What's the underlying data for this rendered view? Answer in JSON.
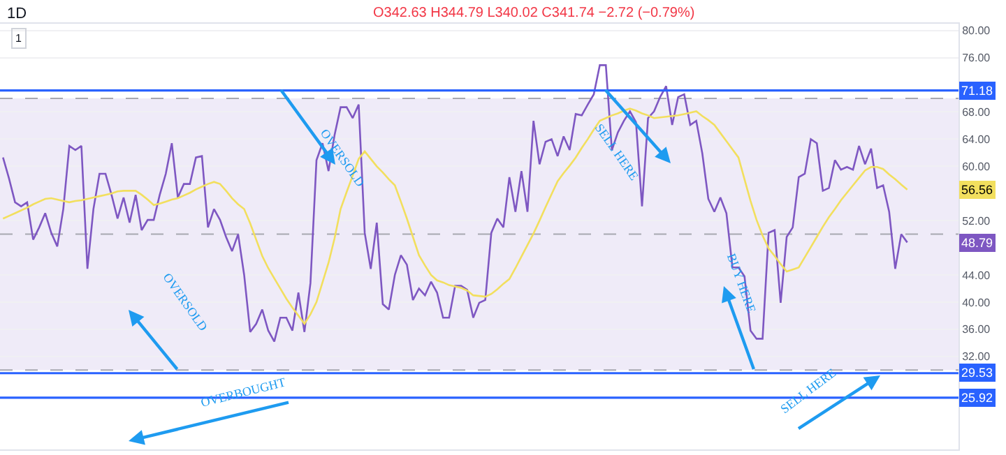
{
  "chart_data": {
    "type": "line",
    "title": "1D",
    "subtitle": "O342.63 H344.79 L340.02 C341.74 −2.72 (−0.79%)",
    "categories": [
      null,
      null,
      null,
      null,
      null,
      null,
      null,
      null,
      null,
      null,
      null,
      null,
      null,
      null,
      null,
      null,
      null,
      null,
      null,
      null,
      null,
      null,
      null,
      null,
      null,
      null,
      null,
      null,
      null,
      null,
      null,
      null,
      null,
      null,
      null,
      null,
      null,
      null,
      null,
      null,
      null,
      null,
      null,
      null,
      null,
      null,
      null,
      null,
      null,
      null,
      null,
      null,
      null,
      null,
      null,
      null,
      null,
      null,
      null,
      null,
      null,
      null,
      null,
      null,
      null,
      null,
      null,
      null,
      null,
      null,
      null,
      null,
      null,
      null,
      null,
      null,
      null,
      null,
      null,
      null,
      null,
      null,
      null,
      null,
      null,
      null,
      null,
      null,
      null,
      null,
      null,
      null,
      null,
      null,
      null,
      null,
      null,
      null,
      null,
      null,
      null,
      null,
      null,
      null,
      null,
      null,
      null,
      null,
      null,
      null,
      null,
      null,
      null,
      null,
      null,
      null,
      null,
      null,
      null,
      null,
      null,
      null,
      null,
      null,
      null,
      null,
      null,
      null,
      null,
      null,
      null,
      null,
      null,
      null,
      null,
      null,
      null,
      null,
      null,
      null,
      null,
      null,
      null,
      null,
      null,
      null,
      null,
      null,
      null,
      null,
      null,
      null,
      null,
      null,
      null,
      null,
      null,
      null,
      null
    ],
    "series": [
      {
        "color": "#7e57c2",
        "values": [
          61.3,
          58.2,
          54.7,
          54.1,
          54.7,
          49.2,
          51.0,
          53.1,
          50.2,
          48.2,
          53.7,
          63.0,
          62.4,
          63.0,
          44.9,
          53.7,
          58.9,
          58.9,
          55.8,
          52.3,
          55.4,
          51.7,
          55.8,
          50.6,
          52.1,
          52.1,
          55.8,
          58.9,
          63.4,
          55.4,
          57.4,
          57.4,
          61.3,
          61.5,
          51.0,
          53.7,
          52.1,
          49.6,
          47.5,
          50.0,
          44.0,
          35.6,
          36.8,
          38.9,
          35.8,
          34.2,
          37.7,
          37.7,
          35.8,
          41.4,
          35.6,
          42.8,
          60.9,
          63.4,
          59.3,
          64.6,
          68.7,
          68.7,
          67.1,
          69.1,
          50.2,
          44.9,
          51.7,
          39.7,
          38.9,
          44.0,
          46.9,
          45.5,
          40.3,
          42.0,
          41.0,
          43.0,
          41.4,
          37.7,
          37.7,
          42.4,
          42.4,
          41.8,
          37.7,
          39.9,
          40.3,
          50.2,
          52.3,
          51.0,
          58.4,
          53.3,
          59.3,
          53.3,
          66.7,
          60.3,
          63.6,
          64.0,
          61.5,
          64.4,
          62.4,
          67.7,
          67.5,
          69.1,
          70.6,
          74.9,
          74.9,
          62.4,
          65.0,
          66.7,
          68.1,
          66.5,
          54.1,
          67.1,
          68.1,
          70.2,
          71.8,
          66.1,
          70.2,
          70.6,
          66.1,
          66.7,
          61.9,
          55.2,
          53.3,
          55.4,
          53.1,
          45.1,
          45.1,
          43.8,
          35.8,
          34.6,
          34.6,
          50.2,
          50.6,
          39.9,
          49.6,
          51.0,
          58.4,
          58.9,
          64.0,
          63.4,
          56.4,
          56.8,
          60.9,
          59.5,
          59.9,
          59.5,
          63.0,
          60.3,
          62.6,
          56.8,
          57.2,
          53.3,
          44.9,
          50.0,
          48.79,
          null,
          null,
          null,
          null,
          null,
          null,
          null,
          null
        ],
        "value_labels": [
          null,
          null,
          null,
          null,
          null,
          null,
          null,
          null,
          null,
          null,
          null,
          null,
          null,
          null,
          null,
          null,
          null,
          null,
          null,
          null,
          null,
          null,
          null,
          null,
          null,
          null,
          null,
          null,
          null,
          null,
          null,
          null,
          null,
          null,
          null,
          null,
          null,
          null,
          null,
          null,
          null,
          null,
          null,
          null,
          null,
          null,
          null,
          null,
          null,
          null,
          null,
          null,
          null,
          null,
          null,
          null,
          null,
          null,
          null,
          null,
          null,
          null,
          null,
          null,
          null,
          null,
          null,
          null,
          null,
          null,
          null,
          null,
          null,
          null,
          null,
          null,
          null,
          null,
          null,
          null,
          null,
          null,
          null,
          null,
          null,
          null,
          null,
          null,
          null,
          null,
          null,
          null,
          null,
          null,
          null,
          null,
          null,
          null,
          null,
          null,
          null,
          null,
          null,
          null,
          null,
          null,
          null,
          null,
          null,
          null,
          null,
          null,
          null,
          null,
          null,
          null,
          null,
          null,
          null,
          null,
          null,
          null,
          null,
          null,
          null,
          null,
          null,
          null,
          null,
          null,
          null,
          null,
          null,
          null,
          null,
          null,
          null,
          null,
          null,
          null,
          null,
          null,
          null,
          null,
          null,
          null,
          null,
          null,
          null,
          null,
          null,
          null,
          null,
          null,
          null,
          null,
          null,
          null,
          null
        ]
      },
      {
        "color": "#f2df5e",
        "values": [
          52.3,
          52.7,
          53.1,
          53.5,
          53.9,
          54.4,
          54.8,
          55.2,
          55.3,
          55.1,
          54.9,
          54.7,
          54.9,
          55.0,
          55.2,
          55.4,
          55.6,
          55.8,
          56.0,
          56.3,
          56.4,
          56.4,
          56.4,
          55.8,
          55.1,
          54.3,
          54.5,
          54.8,
          55.1,
          55.3,
          55.7,
          56.1,
          56.6,
          57.0,
          57.4,
          57.7,
          57.4,
          56.4,
          55.3,
          54.4,
          53.7,
          51.6,
          49.2,
          46.8,
          45.0,
          43.5,
          42.0,
          40.5,
          39.2,
          38.0,
          36.8,
          38.2,
          40.0,
          42.9,
          45.8,
          49.4,
          53.7,
          56.2,
          58.6,
          61.1,
          62.2,
          61.1,
          60.0,
          59.1,
          58.1,
          57.2,
          54.8,
          52.3,
          49.6,
          46.9,
          45.4,
          44.0,
          43.2,
          42.9,
          42.5,
          42.3,
          42.1,
          41.7,
          41.0,
          40.9,
          40.8,
          41.2,
          41.9,
          42.7,
          43.4,
          45.0,
          46.7,
          48.4,
          50.1,
          52.0,
          54.0,
          55.9,
          57.8,
          59.0,
          60.1,
          61.3,
          62.7,
          64.0,
          65.4,
          66.7,
          67.1,
          67.5,
          67.8,
          68.2,
          68.5,
          68.2,
          67.8,
          67.5,
          67.1,
          67.2,
          67.3,
          67.4,
          67.5,
          67.7,
          67.9,
          68.1,
          67.4,
          66.8,
          66.1,
          64.9,
          63.7,
          62.5,
          61.3,
          58.1,
          54.9,
          52.1,
          49.8,
          47.9,
          46.8,
          45.6,
          44.5,
          44.8,
          45.1,
          46.6,
          48.1,
          49.6,
          51.1,
          52.5,
          53.7,
          55.0,
          56.1,
          57.2,
          58.3,
          59.4,
          59.9,
          59.9,
          59.6,
          58.8,
          58.1,
          57.3,
          56.56,
          null,
          null,
          null,
          null,
          null,
          null,
          null,
          null
        ],
        "value_labels": [
          null,
          null,
          null,
          null,
          null,
          null,
          null,
          null,
          null,
          null,
          null,
          null,
          null,
          null,
          null,
          null,
          null,
          null,
          null,
          null,
          null,
          null,
          null,
          null,
          null,
          null,
          null,
          null,
          null,
          null,
          null,
          null,
          null,
          null,
          null,
          null,
          null,
          null,
          null,
          null,
          null,
          null,
          null,
          null,
          null,
          null,
          null,
          null,
          null,
          null,
          null,
          null,
          null,
          null,
          null,
          null,
          null,
          null,
          null,
          null,
          null,
          null,
          null,
          null,
          null,
          null,
          null,
          null,
          null,
          null,
          null,
          null,
          null,
          null,
          null,
          null,
          null,
          null,
          null,
          null,
          null,
          null,
          null,
          null,
          null,
          null,
          null,
          null,
          null,
          null,
          null,
          null,
          null,
          null,
          null,
          null,
          null,
          null,
          null,
          null,
          null,
          null,
          null,
          null,
          null,
          null,
          null,
          null,
          null,
          null,
          null,
          null,
          null,
          null,
          null,
          null,
          null,
          null,
          null,
          null,
          null,
          null,
          null,
          null,
          null,
          null,
          null,
          null,
          null,
          null,
          null,
          null,
          null,
          null,
          null,
          null,
          null,
          null,
          null,
          null,
          null,
          null,
          null,
          null,
          null,
          null,
          null,
          null,
          null,
          null,
          null,
          null,
          null,
          null,
          null,
          null,
          null,
          null,
          null
        ]
      }
    ],
    "ylim": [
      18.3,
      81
    ],
    "yticks": [
      {
        "value": 32,
        "label": "32.00"
      },
      {
        "value": 36,
        "label": "36.00"
      },
      {
        "value": 40,
        "label": "40.00"
      },
      {
        "value": 44,
        "label": "44.00"
      },
      {
        "value": 52,
        "label": "52.00"
      },
      {
        "value": 60,
        "label": "60.00"
      },
      {
        "value": 64,
        "label": "64.00"
      },
      {
        "value": 68,
        "label": "68.00"
      },
      {
        "value": 76,
        "label": "76.00"
      },
      {
        "value": 80,
        "label": "80.00"
      }
    ],
    "bands": [
      {
        "axis": "y",
        "from": 30,
        "to": 70,
        "color": "#efebf8"
      }
    ],
    "ref_lines": [
      {
        "axis": "y",
        "value": 70,
        "color": "#a8a8b0",
        "line_style": "dashed"
      },
      {
        "axis": "y",
        "value": 50,
        "color": "#a8a8b0",
        "line_style": "dashed"
      },
      {
        "axis": "y",
        "value": 30,
        "color": "#a8a8b0",
        "line_style": "dashed"
      },
      {
        "axis": "y",
        "value": 71.18,
        "label": "71.18",
        "color": "#2962ff",
        "line_style": "solid"
      },
      {
        "axis": "y",
        "value": 29.53,
        "label": "29.53",
        "color": "#2962ff",
        "line_style": "solid"
      },
      {
        "axis": "y",
        "value": 25.92,
        "label": "25.92",
        "color": "#2962ff",
        "line_style": "solid"
      }
    ],
    "annotations": [
      "1",
      "OVERSOLD",
      "SELL HERE",
      "OVERSOLD",
      "OVERBOUGHT",
      "BUY HERE",
      "SELL HERE",
      {
        "text": "56.56",
        "y": 56.56
      },
      {
        "text": "48.79",
        "y": 48.79
      }
    ],
    "grid": "y",
    "marker": "none",
    "line_style": "solid"
  }
}
